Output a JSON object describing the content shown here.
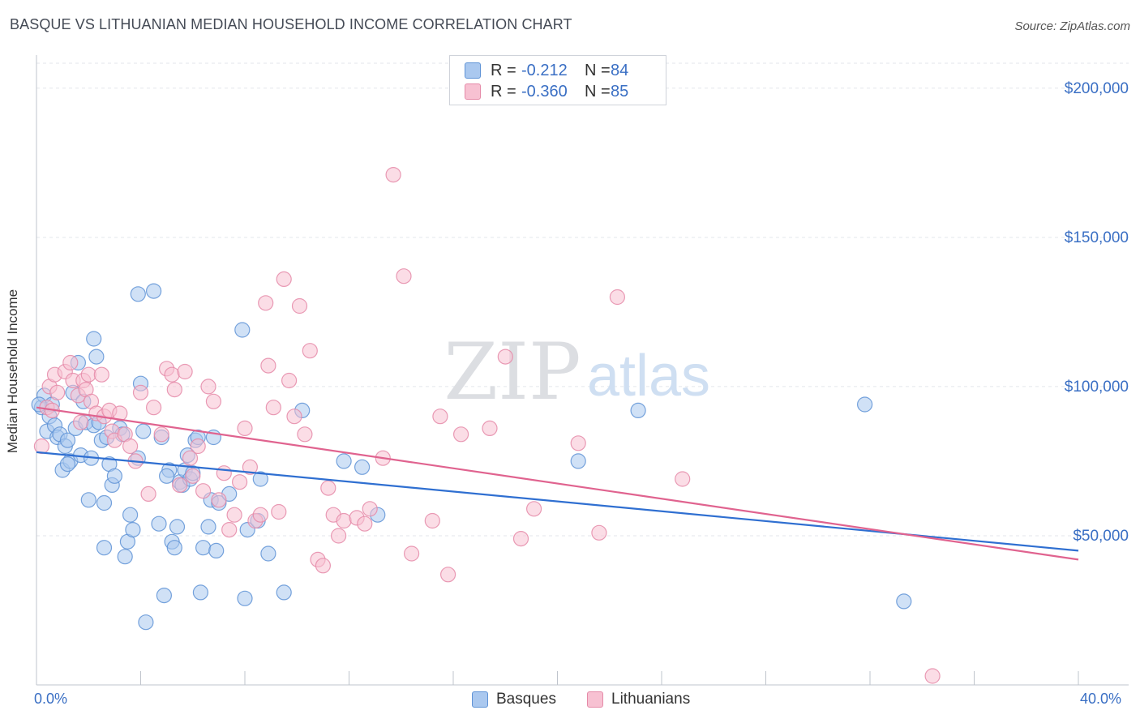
{
  "title": "BASQUE VS LITHUANIAN MEDIAN HOUSEHOLD INCOME CORRELATION CHART",
  "source": "Source: ZipAtlas.com",
  "watermark": {
    "zip": "ZIP",
    "atlas": "atlas"
  },
  "legend_top": [
    {
      "r_label": "R =",
      "r_value": "-0.212",
      "n_label": "N =",
      "n_value": "84"
    },
    {
      "r_label": "R =",
      "r_value": "-0.360",
      "n_label": "N =",
      "n_value": "85"
    }
  ],
  "legend_bottom": [
    "Basques",
    "Lithuanians"
  ],
  "colors": {
    "basque_fill": "#aac8ef",
    "basque_stroke": "#5f93d6",
    "basque_line": "#2f6fd1",
    "lith_fill": "#f7c1d2",
    "lith_stroke": "#e58aa8",
    "lith_line": "#e0638f",
    "grid": "#e3e6eb",
    "axis_text": "#3a6fc4"
  },
  "chart_data": {
    "type": "scatter",
    "xlabel": "",
    "ylabel": "Median Household Income",
    "xlim": [
      0,
      40
    ],
    "ylim": [
      0,
      210000
    ],
    "x_tick_labels": [
      "0.0%",
      "40.0%"
    ],
    "y_ticks": [
      50000,
      100000,
      150000,
      200000
    ],
    "y_tick_labels": [
      "$50,000",
      "$100,000",
      "$150,000",
      "$200,000"
    ],
    "grid": true,
    "legend_position": "top-center",
    "series": [
      {
        "name": "Basques",
        "r": -0.212,
        "n": 84,
        "trend": [
          [
            0,
            78000
          ],
          [
            40,
            45000
          ]
        ],
        "points": [
          [
            0.2,
            93000
          ],
          [
            0.3,
            97000
          ],
          [
            0.4,
            85000
          ],
          [
            0.5,
            90000
          ],
          [
            0.6,
            94000
          ],
          [
            0.7,
            87000
          ],
          [
            0.8,
            83000
          ],
          [
            0.9,
            84000
          ],
          [
            1.0,
            72000
          ],
          [
            1.1,
            80000
          ],
          [
            1.2,
            82000
          ],
          [
            1.3,
            75000
          ],
          [
            1.4,
            98000
          ],
          [
            1.5,
            86000
          ],
          [
            1.6,
            108000
          ],
          [
            1.7,
            77000
          ],
          [
            1.8,
            95000
          ],
          [
            1.9,
            88000
          ],
          [
            2.0,
            62000
          ],
          [
            2.1,
            76000
          ],
          [
            2.2,
            87000
          ],
          [
            2.3,
            110000
          ],
          [
            2.4,
            88000
          ],
          [
            2.5,
            82000
          ],
          [
            2.6,
            46000
          ],
          [
            2.7,
            83000
          ],
          [
            2.8,
            74000
          ],
          [
            2.9,
            67000
          ],
          [
            3.0,
            70000
          ],
          [
            3.2,
            86000
          ],
          [
            3.3,
            84000
          ],
          [
            3.4,
            43000
          ],
          [
            3.5,
            48000
          ],
          [
            3.6,
            57000
          ],
          [
            3.7,
            52000
          ],
          [
            3.9,
            76000
          ],
          [
            4.0,
            101000
          ],
          [
            4.1,
            85000
          ],
          [
            4.2,
            21000
          ],
          [
            4.5,
            132000
          ],
          [
            4.7,
            54000
          ],
          [
            4.8,
            83000
          ],
          [
            4.9,
            30000
          ],
          [
            5.1,
            72000
          ],
          [
            5.2,
            48000
          ],
          [
            5.3,
            46000
          ],
          [
            5.4,
            53000
          ],
          [
            5.5,
            68000
          ],
          [
            5.6,
            67000
          ],
          [
            5.7,
            72000
          ],
          [
            5.8,
            77000
          ],
          [
            5.9,
            69000
          ],
          [
            6.0,
            71000
          ],
          [
            6.1,
            82000
          ],
          [
            6.3,
            31000
          ],
          [
            6.4,
            46000
          ],
          [
            6.6,
            53000
          ],
          [
            6.8,
            83000
          ],
          [
            6.9,
            45000
          ],
          [
            6.7,
            62000
          ],
          [
            7.0,
            61000
          ],
          [
            7.4,
            64000
          ],
          [
            7.9,
            119000
          ],
          [
            8.0,
            29000
          ],
          [
            8.1,
            52000
          ],
          [
            8.5,
            55000
          ],
          [
            8.6,
            69000
          ],
          [
            8.9,
            44000
          ],
          [
            9.5,
            31000
          ],
          [
            3.9,
            131000
          ],
          [
            10.2,
            92000
          ],
          [
            11.8,
            75000
          ],
          [
            12.5,
            73000
          ],
          [
            13.1,
            57000
          ],
          [
            20.8,
            75000
          ],
          [
            23.1,
            92000
          ],
          [
            31.8,
            94000
          ],
          [
            33.3,
            28000
          ],
          [
            2.2,
            116000
          ],
          [
            0.1,
            94000
          ],
          [
            6.2,
            83000
          ],
          [
            1.2,
            74000
          ],
          [
            2.6,
            61000
          ],
          [
            5.0,
            70000
          ]
        ]
      },
      {
        "name": "Lithuanians",
        "r": -0.36,
        "n": 85,
        "trend": [
          [
            0,
            93000
          ],
          [
            40,
            42000
          ]
        ],
        "points": [
          [
            0.2,
            80000
          ],
          [
            0.4,
            93000
          ],
          [
            0.5,
            100000
          ],
          [
            0.6,
            92000
          ],
          [
            0.7,
            104000
          ],
          [
            0.8,
            98000
          ],
          [
            1.1,
            105000
          ],
          [
            1.3,
            108000
          ],
          [
            1.4,
            102000
          ],
          [
            1.6,
            97000
          ],
          [
            1.7,
            88000
          ],
          [
            1.8,
            102000
          ],
          [
            1.9,
            99000
          ],
          [
            2.0,
            104000
          ],
          [
            2.1,
            95000
          ],
          [
            2.3,
            91000
          ],
          [
            2.5,
            104000
          ],
          [
            2.6,
            90000
          ],
          [
            2.8,
            92000
          ],
          [
            2.9,
            85000
          ],
          [
            3.0,
            82000
          ],
          [
            3.2,
            91000
          ],
          [
            3.4,
            84000
          ],
          [
            3.6,
            80000
          ],
          [
            3.8,
            75000
          ],
          [
            4.0,
            98000
          ],
          [
            4.3,
            64000
          ],
          [
            4.5,
            93000
          ],
          [
            4.8,
            84000
          ],
          [
            5.0,
            106000
          ],
          [
            5.2,
            104000
          ],
          [
            5.3,
            99000
          ],
          [
            5.5,
            67000
          ],
          [
            5.7,
            105000
          ],
          [
            5.9,
            76000
          ],
          [
            6.0,
            70000
          ],
          [
            6.2,
            80000
          ],
          [
            6.4,
            65000
          ],
          [
            6.6,
            100000
          ],
          [
            6.8,
            95000
          ],
          [
            7.0,
            62000
          ],
          [
            7.2,
            71000
          ],
          [
            7.4,
            52000
          ],
          [
            7.6,
            57000
          ],
          [
            7.8,
            68000
          ],
          [
            8.0,
            86000
          ],
          [
            8.2,
            73000
          ],
          [
            8.4,
            55000
          ],
          [
            8.6,
            57000
          ],
          [
            8.8,
            128000
          ],
          [
            8.9,
            107000
          ],
          [
            9.1,
            93000
          ],
          [
            9.3,
            58000
          ],
          [
            9.5,
            136000
          ],
          [
            9.7,
            102000
          ],
          [
            9.9,
            90000
          ],
          [
            10.1,
            127000
          ],
          [
            10.3,
            84000
          ],
          [
            10.5,
            112000
          ],
          [
            10.8,
            42000
          ],
          [
            11.0,
            40000
          ],
          [
            11.2,
            66000
          ],
          [
            11.4,
            57000
          ],
          [
            11.6,
            50000
          ],
          [
            11.8,
            55000
          ],
          [
            12.3,
            56000
          ],
          [
            12.6,
            54000
          ],
          [
            12.8,
            59000
          ],
          [
            13.3,
            76000
          ],
          [
            13.7,
            171000
          ],
          [
            14.1,
            137000
          ],
          [
            14.4,
            44000
          ],
          [
            15.2,
            55000
          ],
          [
            15.5,
            90000
          ],
          [
            15.8,
            37000
          ],
          [
            16.3,
            84000
          ],
          [
            17.4,
            86000
          ],
          [
            18.0,
            110000
          ],
          [
            18.6,
            49000
          ],
          [
            19.1,
            59000
          ],
          [
            20.8,
            81000
          ],
          [
            21.6,
            51000
          ],
          [
            22.3,
            130000
          ],
          [
            24.8,
            69000
          ],
          [
            34.4,
            3000
          ]
        ]
      }
    ]
  }
}
